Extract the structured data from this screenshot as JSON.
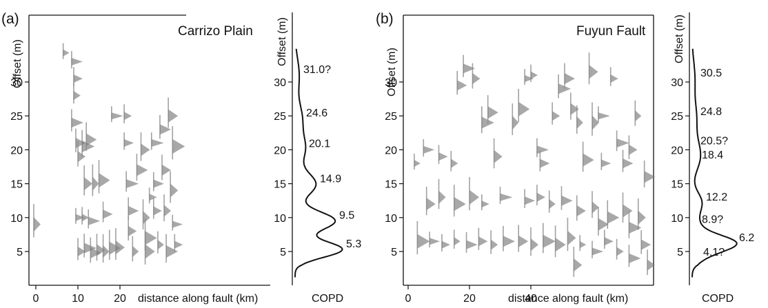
{
  "chart_data": [
    {
      "panel_label": "(a)",
      "type": "scatter",
      "location_label": "Carrizo Plain",
      "xlabel": "distance along fault (km)",
      "ylabel": "Offset (m)",
      "xticks": [
        0,
        10,
        20
      ],
      "yticks": [
        5,
        10,
        15,
        20,
        25,
        30
      ],
      "xlim": [
        -1,
        34
      ],
      "ylim": [
        1,
        35
      ],
      "marker": "gray triangular probability spikes (one per offset measurement)",
      "points": [
        [
          6.5,
          34.3
        ],
        [
          8.5,
          33
        ],
        [
          9,
          30.5
        ],
        [
          9,
          28
        ],
        [
          8.5,
          24
        ],
        [
          9.5,
          21
        ],
        [
          10,
          19
        ],
        [
          11,
          20.5
        ],
        [
          12,
          21.5
        ],
        [
          11.5,
          15
        ],
        [
          13.5,
          15
        ],
        [
          15,
          15.5
        ],
        [
          9.5,
          10
        ],
        [
          11,
          10
        ],
        [
          12.5,
          9.5
        ],
        [
          16,
          10.5
        ],
        [
          10,
          5
        ],
        [
          11.5,
          5.5
        ],
        [
          13,
          4.8
        ],
        [
          14.5,
          5.2
        ],
        [
          16,
          5
        ],
        [
          17.5,
          5.5
        ],
        [
          19,
          5.6
        ],
        [
          -0.5,
          9
        ],
        [
          18,
          25
        ],
        [
          21,
          21
        ],
        [
          21,
          25
        ],
        [
          21.5,
          15
        ],
        [
          22,
          11
        ],
        [
          22,
          8
        ],
        [
          23,
          5
        ],
        [
          24,
          17
        ],
        [
          25,
          20
        ],
        [
          25.5,
          10
        ],
        [
          26,
          7
        ],
        [
          26,
          5
        ],
        [
          27,
          13
        ],
        [
          27.5,
          21
        ],
        [
          28,
          15
        ],
        [
          28,
          11
        ],
        [
          29,
          6
        ],
        [
          29.5,
          23
        ],
        [
          30,
          17
        ],
        [
          30.5,
          11
        ],
        [
          31,
          5
        ],
        [
          31.5,
          25
        ],
        [
          32,
          14
        ],
        [
          32.5,
          20.5
        ],
        [
          32.5,
          9
        ],
        [
          33,
          6
        ]
      ]
    },
    {
      "panel_label": "(b)",
      "type": "scatter",
      "location_label": "Fuyun Fault",
      "xlabel": "distance along fault (km)",
      "ylabel": "Offset (m)",
      "xticks": [
        0,
        20,
        40
      ],
      "yticks": [
        5,
        10,
        15,
        20,
        25,
        30
      ],
      "xlim": [
        -1,
        80
      ],
      "ylim": [
        1,
        35
      ],
      "marker": "gray triangular probability spikes (one per offset measurement)",
      "points": [
        [
          2,
          18
        ],
        [
          5,
          20
        ],
        [
          10,
          19
        ],
        [
          14,
          18
        ],
        [
          18,
          32
        ],
        [
          16,
          29.5
        ],
        [
          21,
          30.5
        ],
        [
          24,
          24
        ],
        [
          26,
          25.5
        ],
        [
          28,
          19
        ],
        [
          34,
          24
        ],
        [
          36,
          26
        ],
        [
          38,
          30.5
        ],
        [
          40,
          31
        ],
        [
          42,
          20
        ],
        [
          43,
          18
        ],
        [
          47,
          25
        ],
        [
          49,
          29
        ],
        [
          51,
          30.5
        ],
        [
          53,
          26
        ],
        [
          55,
          24
        ],
        [
          57,
          18.5
        ],
        [
          59,
          31.5
        ],
        [
          60,
          24
        ],
        [
          62,
          25
        ],
        [
          63,
          18
        ],
        [
          66,
          30.5
        ],
        [
          68,
          21
        ],
        [
          70,
          18
        ],
        [
          72,
          20
        ],
        [
          74,
          25
        ],
        [
          77,
          16
        ],
        [
          6,
          12
        ],
        [
          10,
          13
        ],
        [
          15,
          12
        ],
        [
          20,
          13
        ],
        [
          24,
          12
        ],
        [
          30,
          13
        ],
        [
          38,
          12.5
        ],
        [
          42,
          13
        ],
        [
          46,
          12
        ],
        [
          50,
          12.5
        ],
        [
          55,
          11
        ],
        [
          60,
          11.5
        ],
        [
          65,
          10
        ],
        [
          70,
          11
        ],
        [
          75,
          10
        ],
        [
          3,
          6.5
        ],
        [
          7,
          6.5
        ],
        [
          11,
          6
        ],
        [
          15,
          6.5
        ],
        [
          19,
          6
        ],
        [
          23,
          6.5
        ],
        [
          27,
          6
        ],
        [
          31,
          6.5
        ],
        [
          36,
          6.5
        ],
        [
          40,
          6
        ],
        [
          44,
          6.5
        ],
        [
          48,
          6
        ],
        [
          52,
          7
        ],
        [
          56,
          6
        ],
        [
          60,
          5
        ],
        [
          64,
          6.5
        ],
        [
          68,
          5
        ],
        [
          72,
          4
        ],
        [
          76,
          6
        ],
        [
          78,
          3
        ],
        [
          72,
          8.5
        ],
        [
          62,
          9
        ],
        [
          54,
          3
        ]
      ]
    }
  ],
  "copd_curves": [
    {
      "panel": "a",
      "xlabel": "COPD",
      "ylabel": "Offset (m)",
      "yticks": [
        5,
        10,
        15,
        20,
        25,
        30
      ],
      "ylim": [
        1,
        35
      ],
      "peaks": [
        {
          "offset": 5.3,
          "label": "5.3"
        },
        {
          "offset": 9.5,
          "label": "9.5"
        },
        {
          "offset": 14.9,
          "label": "14.9"
        },
        {
          "offset": 20.1,
          "label": "20.1"
        },
        {
          "offset": 24.6,
          "label": "24.6"
        },
        {
          "offset": 31.0,
          "label": "31.0?"
        }
      ]
    },
    {
      "panel": "b",
      "xlabel": "COPD",
      "ylabel": "Offset (m)",
      "yticks": [
        5,
        10,
        15,
        20,
        25,
        30
      ],
      "ylim": [
        1,
        35
      ],
      "peaks": [
        {
          "offset": 4.1,
          "label": "4.1?"
        },
        {
          "offset": 6.2,
          "label": "6.2"
        },
        {
          "offset": 8.9,
          "label": "8.9?"
        },
        {
          "offset": 12.2,
          "label": "12.2"
        },
        {
          "offset": 18.4,
          "label": "18.4"
        },
        {
          "offset": 20.5,
          "label": "20.5?"
        },
        {
          "offset": 24.8,
          "label": "24.8"
        },
        {
          "offset": 30.5,
          "label": "30.5"
        }
      ]
    }
  ]
}
